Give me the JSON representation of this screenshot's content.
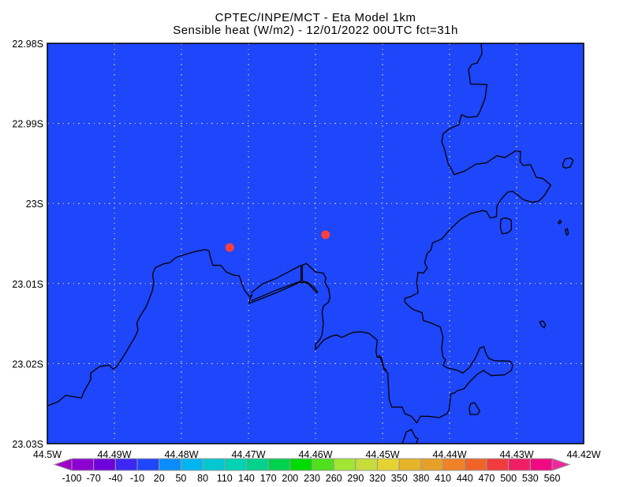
{
  "title": {
    "line1": "CPTEC/INPE/MCT -  Eta Model 1km",
    "line2": "Sensible heat (W/m2) - 12/01/2022 00UTC fct=31h"
  },
  "chart_data": {
    "type": "heatmap",
    "title": "CPTEC/INPE/MCT -  Eta Model 1km / Sensible heat (W/m2) - 12/01/2022 00UTC fct=31h",
    "x_ticks": [
      "44.5W",
      "44.49W",
      "44.48W",
      "44.47W",
      "44.46W",
      "44.45W",
      "44.44W",
      "44.43W",
      "44.42W"
    ],
    "y_ticks": [
      "22.98S",
      "22.99S",
      "23S",
      "23.01S",
      "23.02S",
      "23.03S"
    ],
    "xlim": [
      -44.5,
      -44.42
    ],
    "ylim": [
      -23.03,
      -22.98
    ],
    "grid": true,
    "field_value_range": "-10 to 20",
    "field_color": "#1e46fa",
    "markers": [
      {
        "lon": -44.4728,
        "lat": -23.0055,
        "color": "#ff4040"
      },
      {
        "lon": -44.4585,
        "lat": -23.0039,
        "color": "#ff4040"
      }
    ],
    "colorbar": {
      "labels": [
        "-100",
        "-70",
        "-40",
        "-10",
        "20",
        "50",
        "80",
        "110",
        "140",
        "170",
        "200",
        "230",
        "260",
        "290",
        "320",
        "350",
        "380",
        "410",
        "440",
        "470",
        "500",
        "530",
        "560"
      ],
      "colors": [
        "#8c00d2",
        "#6e00dc",
        "#3c28f0",
        "#1e46fa",
        "#0a8cfa",
        "#00b4f0",
        "#00c8d2",
        "#00d2b4",
        "#00d28c",
        "#00d250",
        "#00dc00",
        "#50e01e",
        "#a0e632",
        "#c8dc3c",
        "#e6d232",
        "#e6b428",
        "#e6a028",
        "#f08228",
        "#f06428",
        "#f03c3c",
        "#f01e64",
        "#f00a82"
      ],
      "under_color": "#a000c8",
      "over_color": "#f028a0"
    }
  }
}
